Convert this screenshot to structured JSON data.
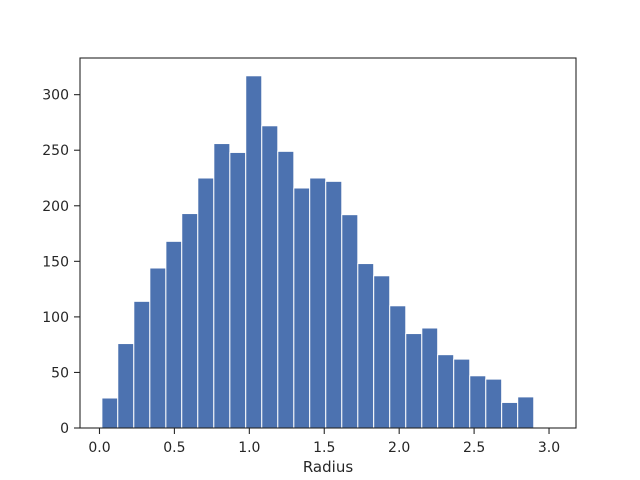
{
  "chart_data": {
    "type": "bar",
    "title": "",
    "xlabel": "Radius",
    "ylabel": "",
    "bin_edges": [
      0.016,
      0.122,
      0.229,
      0.336,
      0.443,
      0.549,
      0.656,
      0.763,
      0.87,
      0.976,
      1.083,
      1.19,
      1.297,
      1.403,
      1.51,
      1.617,
      1.724,
      1.83,
      1.937,
      2.044,
      2.151,
      2.257,
      2.364,
      2.471,
      2.578,
      2.684,
      2.791,
      2.898
    ],
    "values": [
      27,
      76,
      114,
      144,
      168,
      193,
      225,
      256,
      248,
      317,
      272,
      249,
      216,
      225,
      222,
      192,
      148,
      137,
      110,
      85,
      90,
      66,
      62,
      47,
      44,
      23,
      28
    ],
    "xlim": [
      -0.13,
      3.18
    ],
    "ylim": [
      0,
      333
    ],
    "xticks": [
      0.0,
      0.5,
      1.0,
      1.5,
      2.0,
      2.5,
      3.0
    ],
    "xtick_labels": [
      "0.0",
      "0.5",
      "1.0",
      "1.5",
      "2.0",
      "2.5",
      "3.0"
    ],
    "yticks": [
      0,
      50,
      100,
      150,
      200,
      250,
      300
    ],
    "ytick_labels": [
      "0",
      "50",
      "100",
      "150",
      "200",
      "250",
      "300"
    ],
    "grid": false,
    "bar_color": "#4c72b0",
    "edge_color": "#ffffff"
  }
}
